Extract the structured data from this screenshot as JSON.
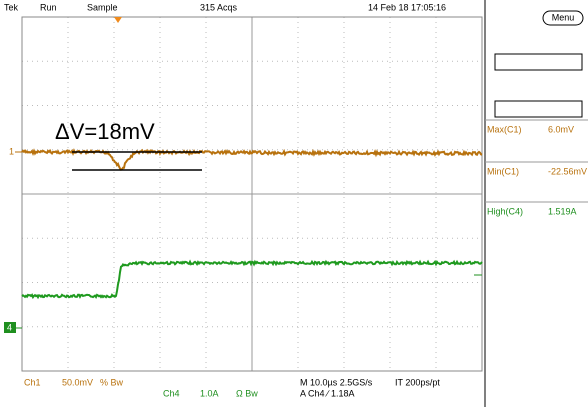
{
  "header": {
    "brand": "Tek",
    "state": "Run",
    "mode": "Sample",
    "acquisitions": "315 Acqs",
    "timestamp": "14 Feb 18 17:05:16"
  },
  "menu_button": "Menu",
  "annotation": "ΔV=18mV",
  "markers": {
    "ch1": "1",
    "ch4": "4"
  },
  "measurements": [
    {
      "label": "Max(C1)",
      "value": "6.0mV"
    },
    {
      "label": "Min(C1)",
      "value": "-22.56mV"
    },
    {
      "label": "High(C4)",
      "value": "1.519A"
    }
  ],
  "footer": {
    "ch1_label": "Ch1",
    "ch1_scale": "50.0mV",
    "ch1_flags": "% Bw",
    "ch4_label": "Ch4",
    "ch4_scale": "1.0A",
    "ch4_flags": "Ω Bw",
    "timebase": "M 10.0µs 2.5GS/s",
    "interp": "IT 200ps/pt",
    "trigger": "A Ch4 ∕ 1.18A"
  }
}
